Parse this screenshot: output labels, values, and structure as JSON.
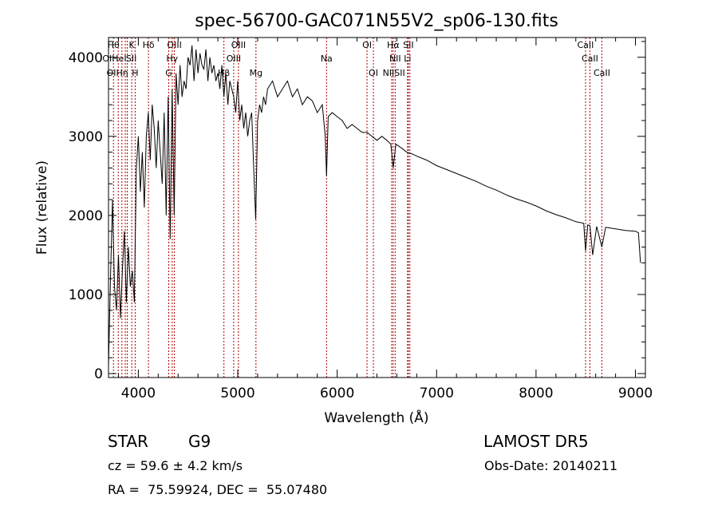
{
  "chart_data": {
    "type": "line",
    "title": "spec-56700-GAC071N55V2_sp06-130.fits",
    "xlabel": "Wavelength (Å)",
    "ylabel": "Flux (relative)",
    "xlim": [
      3700,
      9100
    ],
    "ylim": [
      -50,
      4250
    ],
    "xticks": [
      4000,
      5000,
      6000,
      7000,
      8000,
      9000
    ],
    "xtick_labels": [
      "4000",
      "5000",
      "6000",
      "7000",
      "8000",
      "9000"
    ],
    "yticks": [
      0,
      1000,
      2000,
      3000,
      4000
    ],
    "ytick_labels": [
      "0",
      "1000",
      "2000",
      "3000",
      "4000"
    ],
    "grid": false,
    "series": [
      {
        "x": [
          3700,
          3720,
          3740,
          3760,
          3780,
          3800,
          3820,
          3840,
          3860,
          3880,
          3900,
          3920,
          3940,
          3960,
          3980,
          4000,
          4020,
          4040,
          4060,
          4080,
          4100,
          4120,
          4140,
          4160,
          4180,
          4200,
          4220,
          4240,
          4260,
          4280,
          4300,
          4320,
          4340,
          4360,
          4380,
          4400,
          4420,
          4440,
          4460,
          4480,
          4500,
          4520,
          4540,
          4560,
          4580,
          4600,
          4620,
          4640,
          4660,
          4680,
          4700,
          4720,
          4740,
          4760,
          4780,
          4800,
          4820,
          4840,
          4860,
          4880,
          4900,
          4920,
          4940,
          4960,
          4980,
          5000,
          5020,
          5040,
          5060,
          5080,
          5100,
          5120,
          5140,
          5160,
          5180,
          5200,
          5220,
          5240,
          5260,
          5280,
          5300,
          5350,
          5400,
          5450,
          5500,
          5550,
          5600,
          5650,
          5700,
          5750,
          5800,
          5850,
          5880,
          5893,
          5910,
          5950,
          6000,
          6050,
          6100,
          6150,
          6200,
          6250,
          6300,
          6350,
          6400,
          6450,
          6500,
          6540,
          6563,
          6590,
          6650,
          6700,
          6750,
          6800,
          6900,
          7000,
          7100,
          7200,
          7300,
          7400,
          7500,
          7600,
          7700,
          7800,
          7900,
          8000,
          8100,
          8200,
          8300,
          8400,
          8480,
          8498,
          8520,
          8542,
          8570,
          8610,
          8662,
          8700,
          8800,
          8900,
          9000,
          9030,
          9050
        ],
        "y": [
          100,
          1200,
          2200,
          1100,
          800,
          1500,
          700,
          1300,
          1800,
          900,
          1600,
          1100,
          1300,
          900,
          2600,
          3000,
          2300,
          2800,
          2100,
          3000,
          3300,
          2700,
          3400,
          3100,
          2600,
          3200,
          2800,
          2400,
          3300,
          2000,
          3500,
          1700,
          3600,
          2000,
          3800,
          3400,
          3900,
          3500,
          3700,
          3600,
          4000,
          3900,
          4150,
          3700,
          4100,
          3800,
          4050,
          3900,
          3850,
          4100,
          3700,
          4000,
          3800,
          3900,
          3700,
          3800,
          3600,
          3900,
          3500,
          3800,
          3400,
          3700,
          3600,
          3500,
          3300,
          3700,
          3200,
          3400,
          3100,
          3300,
          3000,
          3200,
          3300,
          2600,
          1950,
          3200,
          3400,
          3300,
          3500,
          3400,
          3600,
          3700,
          3500,
          3600,
          3700,
          3500,
          3600,
          3400,
          3500,
          3450,
          3300,
          3400,
          3000,
          2500,
          3250,
          3300,
          3250,
          3200,
          3100,
          3150,
          3100,
          3050,
          3050,
          3000,
          2950,
          3000,
          2950,
          2900,
          2600,
          2900,
          2850,
          2800,
          2780,
          2750,
          2700,
          2630,
          2580,
          2530,
          2480,
          2430,
          2370,
          2320,
          2260,
          2210,
          2170,
          2120,
          2060,
          2010,
          1970,
          1920,
          1900,
          1550,
          1880,
          1870,
          1500,
          1860,
          1600,
          1850,
          1830,
          1810,
          1800,
          1780,
          1400
        ]
      }
    ],
    "line_marks": [
      {
        "x": 3750,
        "label": "Hθ",
        "row": 0
      },
      {
        "x": 3798,
        "label": "",
        "row": 0
      },
      {
        "x": 3835,
        "label": "",
        "row": 0
      },
      {
        "x": 3869,
        "label": "",
        "row": 0
      },
      {
        "x": 3889,
        "label": "",
        "row": 0
      },
      {
        "x": 3934,
        "label": "K",
        "row": 0
      },
      {
        "x": 3968,
        "label": "",
        "row": 0
      },
      {
        "x": 4102,
        "label": "Hδ",
        "row": 0
      },
      {
        "x": 4306,
        "label": "",
        "row": 0
      },
      {
        "x": 4341,
        "label": "",
        "row": 0
      },
      {
        "x": 4363,
        "label": "OIII",
        "row": 0
      },
      {
        "x": 4861,
        "label": "",
        "row": 0
      },
      {
        "x": 4959,
        "label": "",
        "row": 0
      },
      {
        "x": 5007,
        "label": "OIII",
        "row": 0
      },
      {
        "x": 5183,
        "label": "",
        "row": 0
      },
      {
        "x": 5893,
        "label": "",
        "row": 0
      },
      {
        "x": 6300,
        "label": "OI",
        "row": 0
      },
      {
        "x": 6364,
        "label": "",
        "row": 0
      },
      {
        "x": 6548,
        "label": "",
        "row": 0
      },
      {
        "x": 6563,
        "label": "Hα",
        "row": 0
      },
      {
        "x": 6583,
        "label": "",
        "row": 0
      },
      {
        "x": 6708,
        "label": "",
        "row": 0
      },
      {
        "x": 6716,
        "label": "SII",
        "row": 0
      },
      {
        "x": 6731,
        "label": "",
        "row": 0
      },
      {
        "x": 8498,
        "label": "CaII",
        "row": 0
      },
      {
        "x": 8542,
        "label": "",
        "row": 0
      },
      {
        "x": 8662,
        "label": "",
        "row": 0
      }
    ],
    "line_labels": [
      {
        "x": 3750,
        "row": 0,
        "text": "Hθ"
      },
      {
        "x": 3934,
        "row": 0,
        "text": "K"
      },
      {
        "x": 4102,
        "row": 0,
        "text": "Hδ"
      },
      {
        "x": 4363,
        "row": 0,
        "text": "OIII"
      },
      {
        "x": 5007,
        "row": 0,
        "text": "OIII"
      },
      {
        "x": 6300,
        "row": 0,
        "text": "OI"
      },
      {
        "x": 6563,
        "row": 0,
        "text": "Hα"
      },
      {
        "x": 6716,
        "row": 0,
        "text": "SII"
      },
      {
        "x": 8498,
        "row": 0,
        "text": "CaII"
      },
      {
        "x": 3760,
        "row": 1,
        "text": "OIHeI"
      },
      {
        "x": 3930,
        "row": 1,
        "text": "SII"
      },
      {
        "x": 4340,
        "row": 1,
        "text": "Hγ"
      },
      {
        "x": 4959,
        "row": 1,
        "text": "OIII"
      },
      {
        "x": 5893,
        "row": 1,
        "text": "Na"
      },
      {
        "x": 6583,
        "row": 1,
        "text": "NII"
      },
      {
        "x": 6708,
        "row": 1,
        "text": "Li"
      },
      {
        "x": 8542,
        "row": 1,
        "text": "CaII"
      },
      {
        "x": 3790,
        "row": 2,
        "text": "OIHη"
      },
      {
        "x": 3968,
        "row": 2,
        "text": "H"
      },
      {
        "x": 4306,
        "row": 2,
        "text": "G"
      },
      {
        "x": 4861,
        "row": 2,
        "text": "Hβ"
      },
      {
        "x": 5183,
        "row": 2,
        "text": "Mg"
      },
      {
        "x": 6364,
        "row": 2,
        "text": "OI"
      },
      {
        "x": 6570,
        "row": 2,
        "text": "NIISII"
      },
      {
        "x": 8662,
        "row": 2,
        "text": "CaII"
      }
    ]
  },
  "info": {
    "object_class": "STAR",
    "subclass": "G9",
    "survey": "LAMOST DR5",
    "cz": "cz = 59.6 ± 4.2 km/s",
    "obs_date": "Obs-Date: 20140211",
    "coords": "RA =  75.59924, DEC =  55.07480"
  }
}
